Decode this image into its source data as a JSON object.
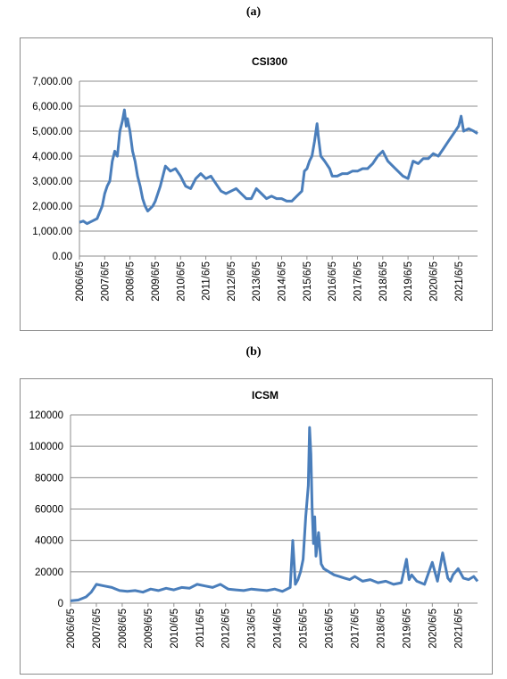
{
  "panels": {
    "a_label": "(a)",
    "b_label": "(b)"
  },
  "chart_data": [
    {
      "type": "line",
      "title": "CSI300",
      "ylim": [
        0,
        7000
      ],
      "y_ticks": [
        "0.00",
        "1,000.00",
        "2,000.00",
        "3,000.00",
        "4,000.00",
        "5,000.00",
        "6,000.00",
        "7,000.00"
      ],
      "y_tick_values": [
        0,
        1000,
        2000,
        3000,
        4000,
        5000,
        6000,
        7000
      ],
      "x_ticks": [
        "2006/6/5",
        "2007/6/5",
        "2008/6/5",
        "2009/6/5",
        "2010/6/5",
        "2011/6/5",
        "2012/6/5",
        "2013/6/5",
        "2014/6/5",
        "2015/6/5",
        "2016/6/5",
        "2017/6/5",
        "2018/6/5",
        "2019/6/5",
        "2020/6/5",
        "2021/6/5"
      ],
      "grid": true,
      "color": "#4a7ebb",
      "series": [
        {
          "x": [
            2006.0,
            2006.15,
            2006.3,
            2006.5,
            2006.7,
            2006.9,
            2007.0,
            2007.1,
            2007.2,
            2007.3,
            2007.4,
            2007.5,
            2007.6,
            2007.7,
            2007.78,
            2007.85,
            2007.9,
            2008.0,
            2008.1,
            2008.2,
            2008.3,
            2008.4,
            2008.5,
            2008.6,
            2008.7,
            2008.8,
            2008.9,
            2009.0,
            2009.2,
            2009.4,
            2009.6,
            2009.8,
            2010.0,
            2010.2,
            2010.4,
            2010.6,
            2010.8,
            2011.0,
            2011.2,
            2011.4,
            2011.6,
            2011.8,
            2012.0,
            2012.2,
            2012.4,
            2012.6,
            2012.8,
            2013.0,
            2013.2,
            2013.4,
            2013.6,
            2013.8,
            2014.0,
            2014.2,
            2014.4,
            2014.6,
            2014.8,
            2014.9,
            2015.0,
            2015.1,
            2015.2,
            2015.3,
            2015.4,
            2015.45,
            2015.55,
            2015.7,
            2015.9,
            2016.0,
            2016.2,
            2016.4,
            2016.6,
            2016.8,
            2017.0,
            2017.2,
            2017.4,
            2017.6,
            2017.8,
            2018.0,
            2018.2,
            2018.4,
            2018.6,
            2018.8,
            2019.0,
            2019.2,
            2019.4,
            2019.6,
            2019.8,
            2020.0,
            2020.2,
            2020.4,
            2020.6,
            2020.8,
            2021.0,
            2021.1,
            2021.2,
            2021.4,
            2021.6,
            2021.75
          ],
          "y": [
            1350,
            1400,
            1300,
            1400,
            1500,
            2000,
            2500,
            2800,
            3000,
            3800,
            4200,
            4000,
            5000,
            5400,
            5850,
            5200,
            5500,
            5000,
            4200,
            3800,
            3200,
            2800,
            2300,
            2000,
            1800,
            1900,
            2000,
            2200,
            2800,
            3600,
            3400,
            3500,
            3200,
            2800,
            2700,
            3100,
            3300,
            3100,
            3200,
            2900,
            2600,
            2500,
            2600,
            2700,
            2500,
            2300,
            2300,
            2700,
            2500,
            2300,
            2400,
            2300,
            2300,
            2200,
            2200,
            2400,
            2600,
            3400,
            3500,
            3800,
            4000,
            4600,
            5300,
            4800,
            4000,
            3800,
            3500,
            3200,
            3200,
            3300,
            3300,
            3400,
            3400,
            3500,
            3500,
            3700,
            4000,
            4200,
            3800,
            3600,
            3400,
            3200,
            3100,
            3800,
            3700,
            3900,
            3900,
            4100,
            4000,
            4300,
            4600,
            4900,
            5200,
            5600,
            5000,
            5100,
            5000,
            4900
          ]
        }
      ]
    },
    {
      "type": "line",
      "title": "ICSM",
      "ylim": [
        0,
        120000
      ],
      "y_ticks": [
        "0",
        "20000",
        "40000",
        "60000",
        "80000",
        "100000",
        "120000"
      ],
      "y_tick_values": [
        0,
        20000,
        40000,
        60000,
        80000,
        100000,
        120000
      ],
      "x_ticks": [
        "2006/6/5",
        "2007/6/5",
        "2008/6/5",
        "2009/6/5",
        "2010/6/5",
        "2011/6/5",
        "2012/6/5",
        "2013/6/5",
        "2014/6/5",
        "2015/6/5",
        "2016/6/5",
        "2017/6/5",
        "2018/6/5",
        "2019/6/5",
        "2020/6/5",
        "2021/6/5"
      ],
      "grid": true,
      "color": "#4a7ebb",
      "series": [
        {
          "x": [
            2006.0,
            2006.3,
            2006.6,
            2006.8,
            2007.0,
            2007.3,
            2007.6,
            2007.9,
            2008.2,
            2008.5,
            2008.8,
            2009.1,
            2009.4,
            2009.7,
            2010.0,
            2010.3,
            2010.6,
            2010.9,
            2011.2,
            2011.5,
            2011.8,
            2012.1,
            2012.4,
            2012.7,
            2013.0,
            2013.3,
            2013.6,
            2013.9,
            2014.2,
            2014.5,
            2014.6,
            2014.7,
            2014.8,
            2014.9,
            2015.0,
            2015.1,
            2015.2,
            2015.25,
            2015.3,
            2015.35,
            2015.4,
            2015.45,
            2015.5,
            2015.6,
            2015.7,
            2015.8,
            2016.0,
            2016.2,
            2016.4,
            2016.6,
            2016.8,
            2017.0,
            2017.3,
            2017.6,
            2017.9,
            2018.2,
            2018.5,
            2018.8,
            2019.0,
            2019.1,
            2019.2,
            2019.4,
            2019.7,
            2020.0,
            2020.2,
            2020.4,
            2020.6,
            2020.7,
            2020.8,
            2021.0,
            2021.2,
            2021.4,
            2021.6,
            2021.75
          ],
          "y": [
            1500,
            2000,
            4000,
            7000,
            12000,
            11000,
            10000,
            8000,
            7500,
            8000,
            7000,
            9000,
            8000,
            9500,
            8500,
            10000,
            9500,
            12000,
            11000,
            10000,
            12000,
            9000,
            8500,
            8000,
            9000,
            8500,
            8000,
            9000,
            7500,
            10000,
            40000,
            12000,
            15000,
            20000,
            28000,
            55000,
            75000,
            112000,
            95000,
            60000,
            38000,
            55000,
            30000,
            45000,
            25000,
            22000,
            20000,
            18000,
            17000,
            16000,
            15000,
            17000,
            14000,
            15000,
            13000,
            14000,
            12000,
            13000,
            28000,
            15000,
            18000,
            14000,
            12000,
            26000,
            14000,
            32000,
            16000,
            14000,
            18000,
            22000,
            16000,
            15000,
            17000,
            14000
          ]
        }
      ]
    }
  ]
}
